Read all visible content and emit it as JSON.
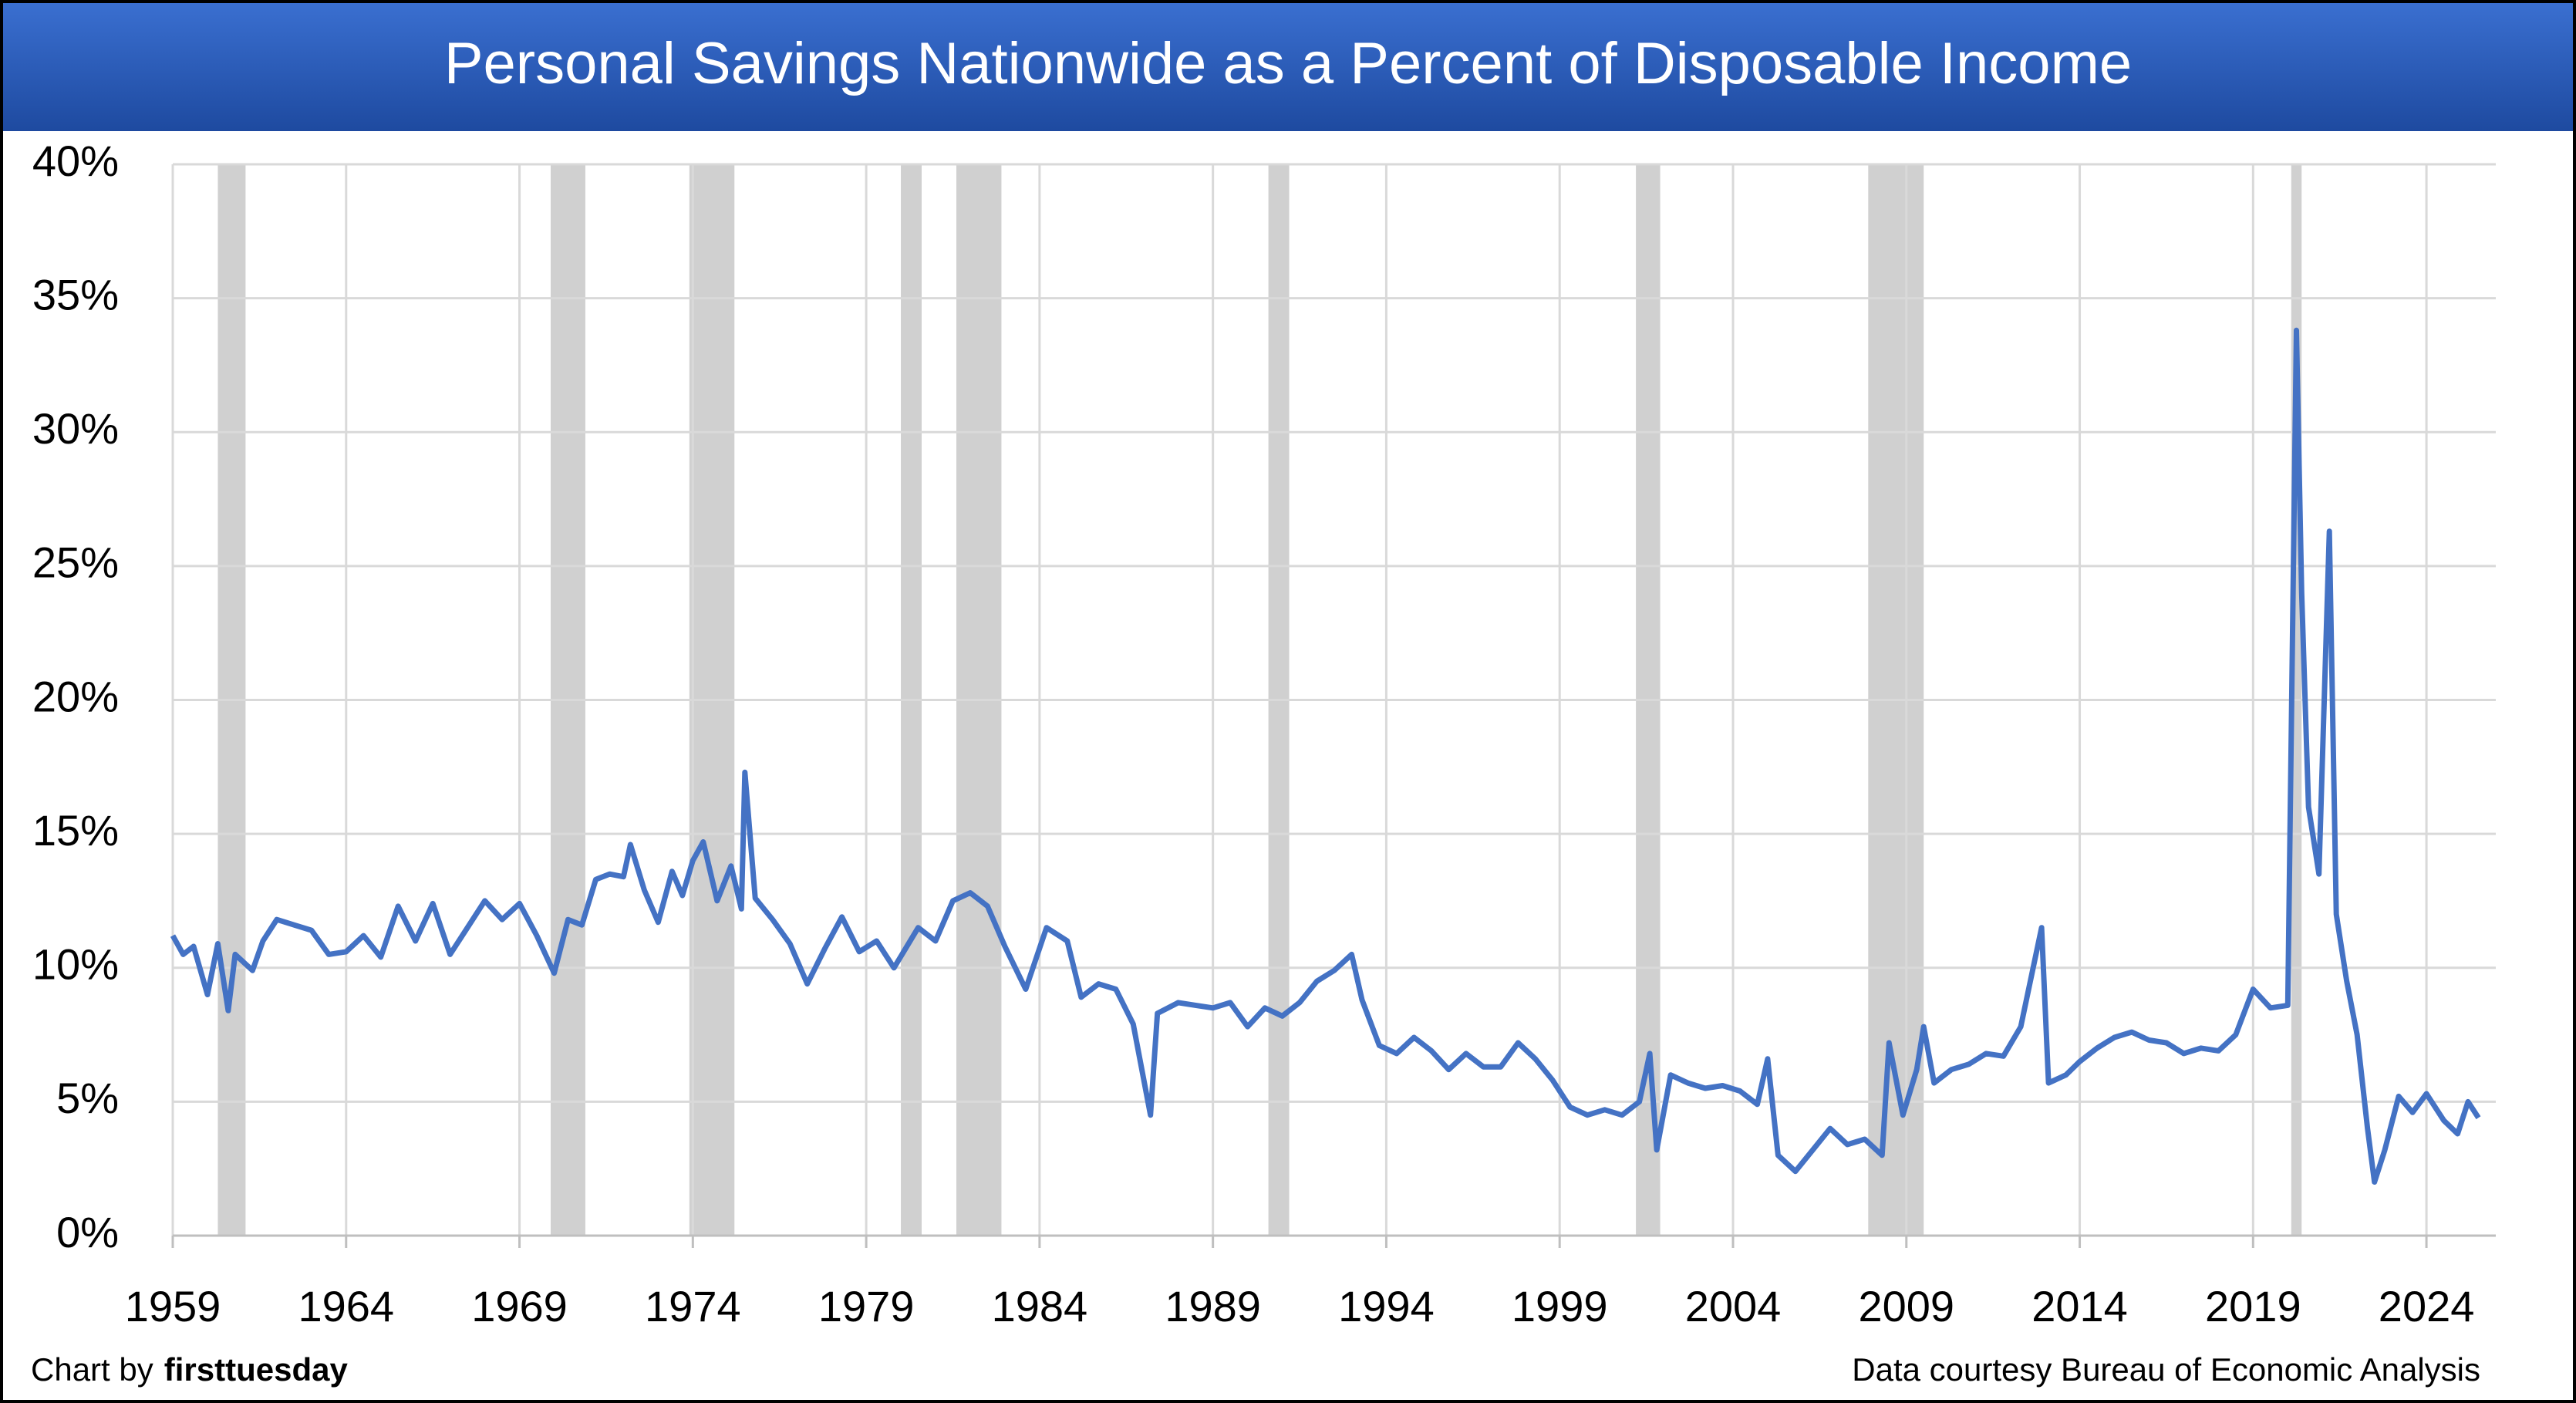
{
  "chart_data": {
    "type": "line",
    "title": "Personal Savings Nationwide as a Percent of Disposable Income",
    "footer_left_prefix": "Chart by",
    "footer_left_brand": "firsttuesday",
    "footer_right": "Data courtesy Bureau of Economic Analysis",
    "color": "#4472c4",
    "grid": true,
    "xlim": [
      1959,
      2026
    ],
    "xticks": [
      1959,
      1964,
      1969,
      1974,
      1979,
      1984,
      1989,
      1994,
      1999,
      2004,
      2009,
      2014,
      2019,
      2024
    ],
    "ylim": [
      0,
      40
    ],
    "yticks": [
      {
        "value": 0,
        "label": "0%"
      },
      {
        "value": 5,
        "label": "5%"
      },
      {
        "value": 10,
        "label": "10%"
      },
      {
        "value": 15,
        "label": "15%"
      },
      {
        "value": 20,
        "label": "20%"
      },
      {
        "value": 25,
        "label": "25%"
      },
      {
        "value": 30,
        "label": "30%"
      },
      {
        "value": 35,
        "label": "35%"
      },
      {
        "value": 40,
        "label": "40%"
      }
    ],
    "recessions": [
      [
        1960.3,
        1961.1
      ],
      [
        1969.9,
        1970.9
      ],
      [
        1973.9,
        1975.2
      ],
      [
        1980.0,
        1980.6
      ],
      [
        1981.6,
        1982.9
      ],
      [
        1990.6,
        1991.2
      ],
      [
        2001.2,
        2001.9
      ],
      [
        2007.9,
        2009.5
      ],
      [
        2020.1,
        2020.4
      ]
    ],
    "x": [
      1959.0,
      1959.3,
      1959.6,
      1960.0,
      1960.3,
      1960.6,
      1960.8,
      1961.3,
      1961.6,
      1962.0,
      1962.5,
      1963.0,
      1963.5,
      1964.0,
      1964.5,
      1965.0,
      1965.5,
      1966.0,
      1966.5,
      1967.0,
      1967.5,
      1968.0,
      1968.5,
      1969.0,
      1969.5,
      1970.0,
      1970.4,
      1970.8,
      1971.2,
      1971.6,
      1972.0,
      1972.2,
      1972.6,
      1973.0,
      1973.4,
      1973.7,
      1974.0,
      1974.3,
      1974.7,
      1975.1,
      1975.4,
      1975.5,
      1975.8,
      1976.3,
      1976.8,
      1977.3,
      1977.8,
      1978.3,
      1978.8,
      1979.3,
      1979.8,
      1980.5,
      1981.0,
      1981.5,
      1982.0,
      1982.5,
      1983.0,
      1983.6,
      1984.2,
      1984.8,
      1985.2,
      1985.7,
      1986.2,
      1986.7,
      1987.2,
      1987.4,
      1988.0,
      1988.5,
      1989.0,
      1989.5,
      1990.0,
      1990.5,
      1991.0,
      1991.5,
      1992.0,
      1992.5,
      1993.0,
      1993.3,
      1993.8,
      1994.3,
      1994.8,
      1995.3,
      1995.8,
      1996.3,
      1996.8,
      1997.3,
      1997.8,
      1998.3,
      1998.8,
      1999.3,
      1999.8,
      2000.3,
      2000.8,
      2001.3,
      2001.6,
      2001.8,
      2002.2,
      2002.7,
      2003.2,
      2003.7,
      2004.2,
      2004.7,
      2005.0,
      2005.3,
      2005.8,
      2006.3,
      2006.8,
      2007.3,
      2007.8,
      2008.3,
      2008.5,
      2008.9,
      2009.3,
      2009.5,
      2009.8,
      2010.3,
      2010.8,
      2011.3,
      2011.8,
      2012.3,
      2012.9,
      2013.1,
      2013.6,
      2014.0,
      2014.5,
      2015.0,
      2015.5,
      2016.0,
      2016.5,
      2017.0,
      2017.5,
      2018.0,
      2018.5,
      2019.0,
      2019.5,
      2020.0,
      2020.25,
      2020.4,
      2020.6,
      2020.9,
      2021.2,
      2021.4,
      2021.7,
      2022.0,
      2022.3,
      2022.5,
      2022.8,
      2023.2,
      2023.6,
      2024.0,
      2024.5,
      2024.9,
      2025.2,
      2025.5
    ],
    "values": [
      11.2,
      10.5,
      10.8,
      9.0,
      10.9,
      8.4,
      10.5,
      9.9,
      11.0,
      11.8,
      11.6,
      11.4,
      10.5,
      10.6,
      11.2,
      10.4,
      12.3,
      11.0,
      12.4,
      10.5,
      11.5,
      12.5,
      11.8,
      12.4,
      11.2,
      9.8,
      11.8,
      11.6,
      13.3,
      13.5,
      13.4,
      14.6,
      12.9,
      11.7,
      13.6,
      12.7,
      14.0,
      14.7,
      12.5,
      13.8,
      12.2,
      17.3,
      12.6,
      11.8,
      10.9,
      9.4,
      10.7,
      11.9,
      10.6,
      11.0,
      10.0,
      11.5,
      11.0,
      12.5,
      12.8,
      12.3,
      10.8,
      9.2,
      11.5,
      11.0,
      8.9,
      9.4,
      9.2,
      7.9,
      4.5,
      8.3,
      8.7,
      8.6,
      8.5,
      8.7,
      7.8,
      8.5,
      8.2,
      8.7,
      9.5,
      9.9,
      10.5,
      8.8,
      7.1,
      6.8,
      7.4,
      6.9,
      6.2,
      6.8,
      6.3,
      6.3,
      7.2,
      6.6,
      5.8,
      4.8,
      4.5,
      4.7,
      4.5,
      5.0,
      6.8,
      3.2,
      6.0,
      5.7,
      5.5,
      5.6,
      5.4,
      4.9,
      6.6,
      3.0,
      2.4,
      3.2,
      4.0,
      3.4,
      3.6,
      3.0,
      7.2,
      4.5,
      6.2,
      7.8,
      5.7,
      6.2,
      6.4,
      6.8,
      6.7,
      7.8,
      11.5,
      5.7,
      6.0,
      6.5,
      7.0,
      7.4,
      7.6,
      7.3,
      7.2,
      6.8,
      7.0,
      6.9,
      7.5,
      9.2,
      8.5,
      8.6,
      33.8,
      24.0,
      16.0,
      13.5,
      26.3,
      12.0,
      9.5,
      7.5,
      4.0,
      2.0,
      3.2,
      5.2,
      4.6,
      5.3,
      4.3,
      3.8,
      5.0,
      4.4
    ]
  }
}
